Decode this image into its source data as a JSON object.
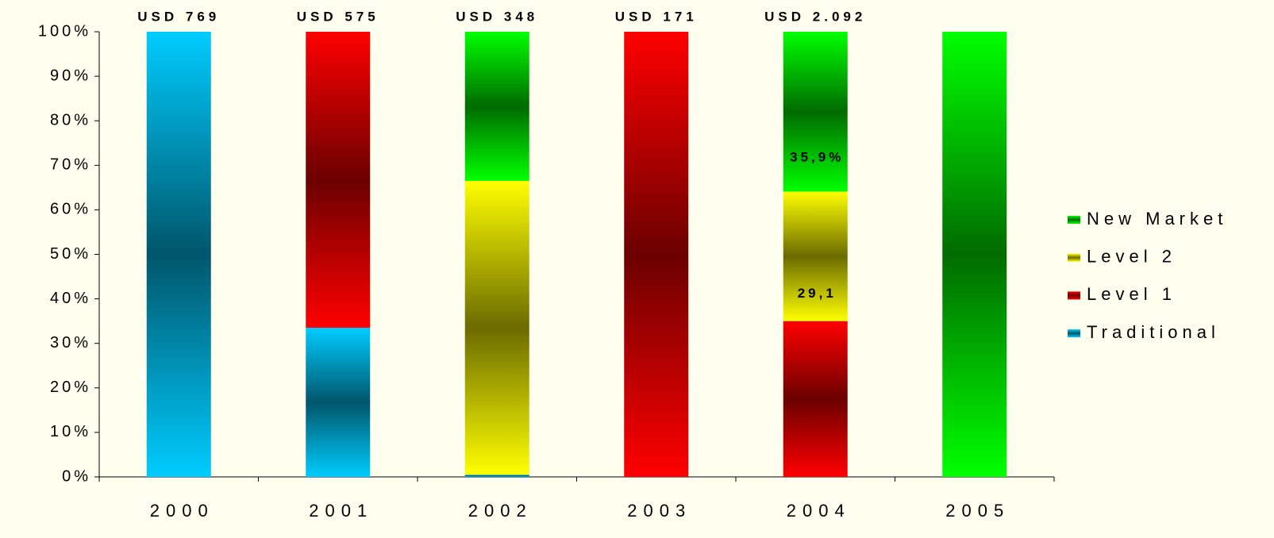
{
  "chart_data": {
    "type": "stacked_bar_percent",
    "categories": [
      "2000",
      "2001",
      "2002",
      "2003",
      "2004",
      "2005"
    ],
    "top_labels": [
      "USD 769",
      "USD 575",
      "USD 348",
      "USD 171",
      "USD 2.092",
      null
    ],
    "series": [
      {
        "name": "Traditional",
        "color": "#00ccff",
        "values": [
          100,
          33.5,
          0.5,
          0,
          0,
          0
        ]
      },
      {
        "name": "Level 1",
        "color": "#ff0000",
        "values": [
          0,
          66.5,
          0,
          100,
          35.0,
          0
        ]
      },
      {
        "name": "Level 2",
        "color": "#ffff00",
        "values": [
          0,
          0,
          66.0,
          0,
          29.1,
          0
        ],
        "value_labels": [
          null,
          null,
          null,
          null,
          "29,1",
          null
        ]
      },
      {
        "name": "New Market",
        "color": "#00ff00",
        "values": [
          0,
          0,
          33.5,
          0,
          35.9,
          100
        ],
        "value_labels": [
          null,
          null,
          null,
          null,
          "35,9%",
          null
        ]
      }
    ],
    "ylim": [
      0,
      100
    ],
    "yticks": [
      {
        "value": 0,
        "label": "0%"
      },
      {
        "value": 10,
        "label": "10%"
      },
      {
        "value": 20,
        "label": "20%"
      },
      {
        "value": 30,
        "label": "30%"
      },
      {
        "value": 40,
        "label": "40%"
      },
      {
        "value": 50,
        "label": "50%"
      },
      {
        "value": 60,
        "label": "60%"
      },
      {
        "value": 70,
        "label": "70%"
      },
      {
        "value": 80,
        "label": "80%"
      },
      {
        "value": 90,
        "label": "90%"
      },
      {
        "value": 100,
        "label": "100%"
      }
    ],
    "legend": "right"
  }
}
